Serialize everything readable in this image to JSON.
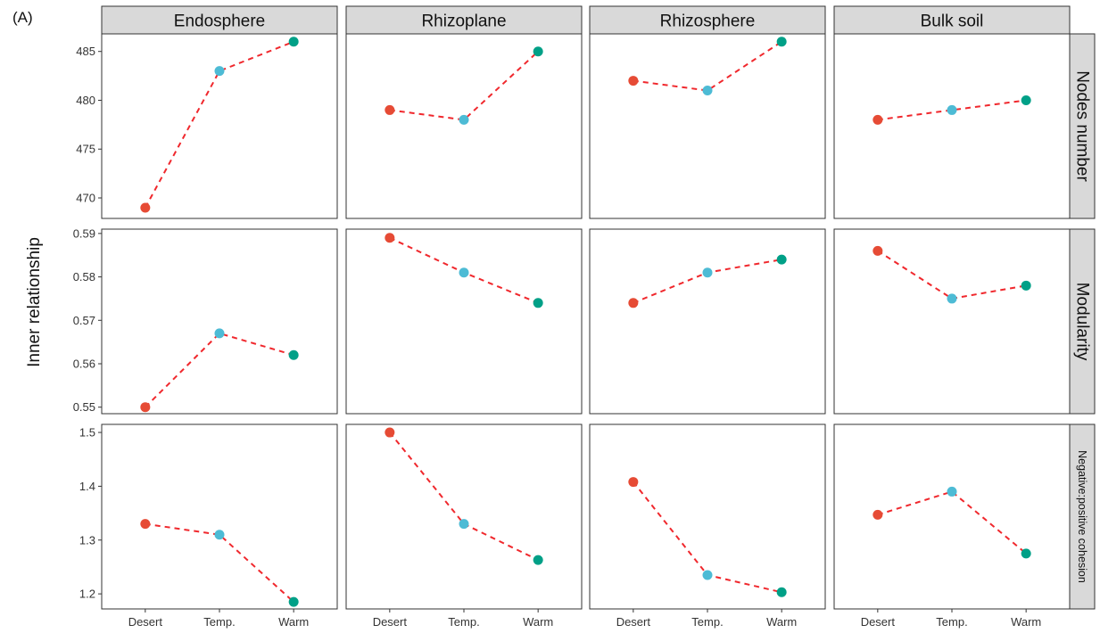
{
  "panel_label": "(A)",
  "chart_data": {
    "type": "scatter",
    "ylabel": "Inner relationship",
    "categories": [
      "Desert",
      "Temp.",
      "Warm"
    ],
    "columns": [
      "Endosphere",
      "Rhizoplane",
      "Rhizosphere",
      "Bulk soil"
    ],
    "point_colors": [
      "#E64B35",
      "#4DBBD5",
      "#00A087"
    ],
    "line_color": "#F0282D",
    "line_style": "dashed",
    "grid": false,
    "rows": [
      {
        "name": "Nodes number",
        "ylim": [
          467.9,
          486.8
        ],
        "yticks": [
          470,
          475,
          480,
          485
        ],
        "tick_labels": [
          "470",
          "475",
          "480",
          "485"
        ],
        "values": [
          [
            469,
            483,
            486
          ],
          [
            479,
            478,
            485
          ],
          [
            482,
            481,
            486
          ],
          [
            478,
            479,
            480
          ]
        ]
      },
      {
        "name": "Modularity",
        "ylim": [
          0.5485,
          0.591
        ],
        "yticks": [
          0.55,
          0.56,
          0.57,
          0.58,
          0.59
        ],
        "tick_labels": [
          "0.55",
          "0.56",
          "0.57",
          "0.58",
          "0.59"
        ],
        "values": [
          [
            0.55,
            0.567,
            0.562
          ],
          [
            0.589,
            0.581,
            0.574
          ],
          [
            0.574,
            0.581,
            0.584
          ],
          [
            0.586,
            0.575,
            0.578
          ]
        ]
      },
      {
        "name": "Negative:positive cohesion",
        "ylim": [
          1.172,
          1.515
        ],
        "yticks": [
          1.2,
          1.3,
          1.4,
          1.5
        ],
        "tick_labels": [
          "1.2",
          "1.3",
          "1.4",
          "1.5"
        ],
        "values": [
          [
            1.33,
            1.31,
            1.185
          ],
          [
            1.5,
            1.33,
            1.263
          ],
          [
            1.408,
            1.235,
            1.203
          ],
          [
            1.347,
            1.39,
            1.275
          ]
        ]
      }
    ]
  }
}
